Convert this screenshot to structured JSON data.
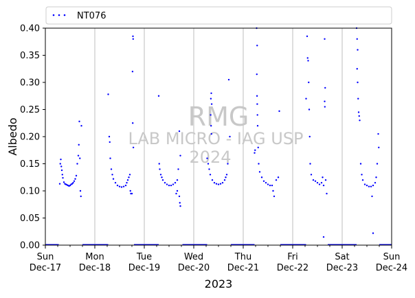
{
  "chart_data": {
    "type": "scatter",
    "title": "",
    "xlabel": "2023",
    "ylabel": "Albedo",
    "ylim": [
      0,
      0.4
    ],
    "yticks": [
      "0.00",
      "0.05",
      "0.10",
      "0.15",
      "0.20",
      "0.25",
      "0.30",
      "0.35",
      "0.40"
    ],
    "xlim": [
      "2023-12-17",
      "2023-12-24"
    ],
    "xticks": [
      {
        "day": "Sun",
        "date": "Dec-17"
      },
      {
        "day": "Mon",
        "date": "Dec-18"
      },
      {
        "day": "Tue",
        "date": "Dec-19"
      },
      {
        "day": "Wed",
        "date": "Dec-20"
      },
      {
        "day": "Thu",
        "date": "Dec-21"
      },
      {
        "day": "Fri",
        "date": "Dec-22"
      },
      {
        "day": "Sat",
        "date": "Dec-23"
      },
      {
        "day": "Sun",
        "date": "Dec-24"
      }
    ],
    "grid": "vertical lines at day ticks",
    "legend_position": "top, above plot",
    "series": [
      {
        "name": "NT076",
        "color": "#0000ff",
        "marker": "dot",
        "x_unit": "hours since 2023-12-17 00:00",
        "points": [
          [
            7.0,
            0.113
          ],
          [
            7.25,
            0.15
          ],
          [
            7.5,
            0.158
          ],
          [
            7.75,
            0.145
          ],
          [
            8.0,
            0.138
          ],
          [
            8.25,
            0.13
          ],
          [
            8.5,
            0.124
          ],
          [
            9.0,
            0.116
          ],
          [
            9.5,
            0.113
          ],
          [
            10.0,
            0.112
          ],
          [
            10.5,
            0.111
          ],
          [
            11.0,
            0.11
          ],
          [
            11.5,
            0.109
          ],
          [
            12.0,
            0.11
          ],
          [
            12.5,
            0.112
          ],
          [
            13.0,
            0.113
          ],
          [
            13.5,
            0.115
          ],
          [
            14.0,
            0.118
          ],
          [
            14.5,
            0.122
          ],
          [
            15.0,
            0.128
          ],
          [
            15.5,
            0.15
          ],
          [
            16.0,
            0.165
          ],
          [
            16.25,
            0.185
          ],
          [
            16.5,
            0.228
          ],
          [
            16.75,
            0.16
          ],
          [
            17.0,
            0.1
          ],
          [
            17.25,
            0.09
          ],
          [
            17.5,
            0.22
          ],
          [
            30.5,
            0.278
          ],
          [
            31.0,
            0.2
          ],
          [
            31.25,
            0.19
          ],
          [
            31.5,
            0.16
          ],
          [
            32.0,
            0.14
          ],
          [
            32.5,
            0.13
          ],
          [
            33.0,
            0.122
          ],
          [
            34.0,
            0.115
          ],
          [
            35.0,
            0.11
          ],
          [
            36.0,
            0.108
          ],
          [
            37.0,
            0.107
          ],
          [
            38.0,
            0.108
          ],
          [
            39.0,
            0.11
          ],
          [
            39.5,
            0.115
          ],
          [
            40.0,
            0.12
          ],
          [
            40.5,
            0.125
          ],
          [
            41.0,
            0.13
          ],
          [
            41.25,
            0.1
          ],
          [
            41.5,
            0.095
          ],
          [
            42.0,
            0.095
          ],
          [
            42.5,
            0.385
          ],
          [
            42.6,
            0.38
          ],
          [
            42.3,
            0.32
          ],
          [
            42.4,
            0.225
          ],
          [
            42.7,
            0.18
          ],
          [
            55.0,
            0.275
          ],
          [
            55.25,
            0.15
          ],
          [
            55.5,
            0.14
          ],
          [
            56.0,
            0.13
          ],
          [
            56.5,
            0.125
          ],
          [
            57.0,
            0.12
          ],
          [
            58.0,
            0.115
          ],
          [
            59.0,
            0.112
          ],
          [
            60.0,
            0.11
          ],
          [
            61.0,
            0.11
          ],
          [
            62.0,
            0.112
          ],
          [
            63.0,
            0.115
          ],
          [
            64.0,
            0.12
          ],
          [
            64.5,
            0.14
          ],
          [
            65.0,
            0.21
          ],
          [
            65.5,
            0.165
          ],
          [
            65.0,
            0.09
          ],
          [
            65.25,
            0.078
          ],
          [
            65.5,
            0.072
          ],
          [
            64.0,
            0.1
          ],
          [
            63.5,
            0.095
          ],
          [
            78.5,
            0.16
          ],
          [
            79.0,
            0.15
          ],
          [
            79.5,
            0.14
          ],
          [
            80.0,
            0.13
          ],
          [
            81.0,
            0.12
          ],
          [
            82.0,
            0.115
          ],
          [
            83.0,
            0.113
          ],
          [
            84.0,
            0.112
          ],
          [
            85.0,
            0.113
          ],
          [
            86.0,
            0.115
          ],
          [
            87.0,
            0.12
          ],
          [
            87.5,
            0.125
          ],
          [
            88.0,
            0.13
          ],
          [
            88.5,
            0.15
          ],
          [
            89.0,
            0.305
          ],
          [
            89.5,
            0.2
          ],
          [
            80.5,
            0.28
          ],
          [
            80.3,
            0.27
          ],
          [
            80.7,
            0.26
          ],
          [
            80.2,
            0.24
          ],
          [
            80.4,
            0.22
          ],
          [
            80.6,
            0.205
          ],
          [
            102.5,
            0.4
          ],
          [
            102.75,
            0.368
          ],
          [
            102.6,
            0.315
          ],
          [
            102.7,
            0.275
          ],
          [
            102.8,
            0.26
          ],
          [
            102.9,
            0.24
          ],
          [
            103.0,
            0.22
          ],
          [
            103.25,
            0.18
          ],
          [
            103.5,
            0.15
          ],
          [
            104.0,
            0.135
          ],
          [
            105.0,
            0.125
          ],
          [
            106.0,
            0.118
          ],
          [
            107.0,
            0.115
          ],
          [
            108.0,
            0.112
          ],
          [
            109.0,
            0.11
          ],
          [
            110.0,
            0.11
          ],
          [
            110.5,
            0.1
          ],
          [
            111.0,
            0.09
          ],
          [
            112.0,
            0.12
          ],
          [
            113.0,
            0.125
          ],
          [
            113.5,
            0.247
          ],
          [
            101.5,
            0.17
          ],
          [
            101.75,
            0.175
          ],
          [
            127.0,
            0.385
          ],
          [
            127.25,
            0.345
          ],
          [
            127.5,
            0.34
          ],
          [
            127.75,
            0.3
          ],
          [
            126.5,
            0.27
          ],
          [
            128.0,
            0.25
          ],
          [
            128.25,
            0.2
          ],
          [
            128.5,
            0.15
          ],
          [
            129.0,
            0.13
          ],
          [
            130.0,
            0.12
          ],
          [
            131.0,
            0.118
          ],
          [
            132.0,
            0.115
          ],
          [
            133.0,
            0.112
          ],
          [
            134.0,
            0.115
          ],
          [
            134.5,
            0.125
          ],
          [
            135.0,
            0.11
          ],
          [
            135.5,
            0.38
          ],
          [
            135.75,
            0.29
          ],
          [
            135.5,
            0.265
          ],
          [
            135.6,
            0.255
          ],
          [
            136.0,
            0.12
          ],
          [
            136.5,
            0.095
          ],
          [
            135.0,
            0.015
          ],
          [
            151.0,
            0.4
          ],
          [
            151.25,
            0.38
          ],
          [
            151.5,
            0.36
          ],
          [
            151.25,
            0.325
          ],
          [
            151.5,
            0.3
          ],
          [
            151.75,
            0.27
          ],
          [
            152.0,
            0.245
          ],
          [
            152.25,
            0.238
          ],
          [
            152.5,
            0.23
          ],
          [
            153.0,
            0.15
          ],
          [
            153.5,
            0.13
          ],
          [
            154.0,
            0.12
          ],
          [
            155.0,
            0.112
          ],
          [
            156.0,
            0.11
          ],
          [
            157.0,
            0.108
          ],
          [
            158.0,
            0.108
          ],
          [
            159.0,
            0.11
          ],
          [
            160.0,
            0.115
          ],
          [
            160.5,
            0.125
          ],
          [
            161.0,
            0.15
          ],
          [
            161.5,
            0.205
          ],
          [
            161.75,
            0.18
          ],
          [
            159.0,
            0.022
          ],
          [
            158.5,
            0.09
          ]
        ]
      }
    ]
  },
  "watermark": {
    "line1": "RMG",
    "line2": "LAB MICRO - IAG USP",
    "line3": "2024"
  }
}
